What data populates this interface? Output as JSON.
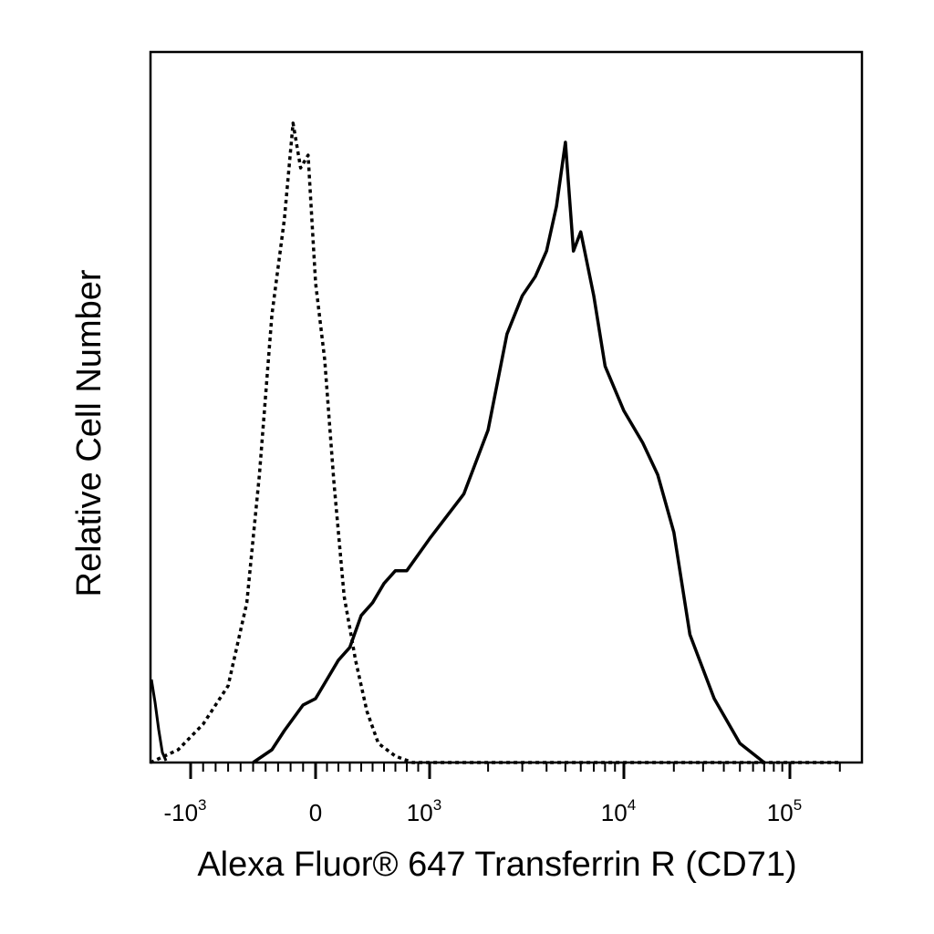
{
  "chart_data": {
    "type": "line",
    "title": "",
    "xlabel": "Alexa Fluor® 647 Transferrin R (CD71)",
    "ylabel": "Relative Cell Number",
    "x_scale": "biexponential",
    "x_tick_labels": [
      {
        "base": "-10",
        "exp": "3"
      },
      {
        "base": "0",
        "exp": ""
      },
      {
        "base": "10",
        "exp": "3"
      },
      {
        "base": "10",
        "exp": "4"
      },
      {
        "base": "10",
        "exp": "5"
      }
    ],
    "x_tick_values": [
      -1000,
      0,
      1000,
      10000,
      100000
    ],
    "y_ticks_shown": false,
    "grid": false,
    "series": [
      {
        "style": "dotted",
        "x": [
          -1400,
          -1100,
          -900,
          -700,
          -550,
          -450,
          -350,
          -250,
          -180,
          -120,
          -60,
          0,
          80,
          160,
          250,
          350,
          450,
          550,
          700,
          850,
          1100,
          2000,
          10000,
          50000,
          100000,
          200000
        ],
        "y": [
          0,
          0.02,
          0.06,
          0.12,
          0.25,
          0.45,
          0.7,
          0.85,
          1.0,
          0.93,
          0.95,
          0.75,
          0.63,
          0.44,
          0.26,
          0.16,
          0.08,
          0.03,
          0.01,
          0,
          0,
          0,
          0,
          0,
          0,
          0
        ]
      },
      {
        "style": "solid",
        "x": [
          -500,
          -350,
          -250,
          -100,
          0,
          100,
          200,
          300,
          400,
          500,
          600,
          700,
          800,
          1000,
          1500,
          2000,
          2500,
          3000,
          3500,
          4000,
          4500,
          5000,
          5500,
          6000,
          7000,
          8000,
          10000,
          13000,
          16000,
          20000,
          25000,
          35000,
          50000,
          70000
        ],
        "y": [
          0,
          0.02,
          0.05,
          0.09,
          0.1,
          0.13,
          0.16,
          0.18,
          0.23,
          0.25,
          0.28,
          0.3,
          0.3,
          0.35,
          0.42,
          0.52,
          0.67,
          0.73,
          0.76,
          0.8,
          0.87,
          0.97,
          0.8,
          0.83,
          0.73,
          0.62,
          0.55,
          0.5,
          0.45,
          0.36,
          0.2,
          0.1,
          0.03,
          0
        ]
      }
    ],
    "extra_left_spike": true
  }
}
